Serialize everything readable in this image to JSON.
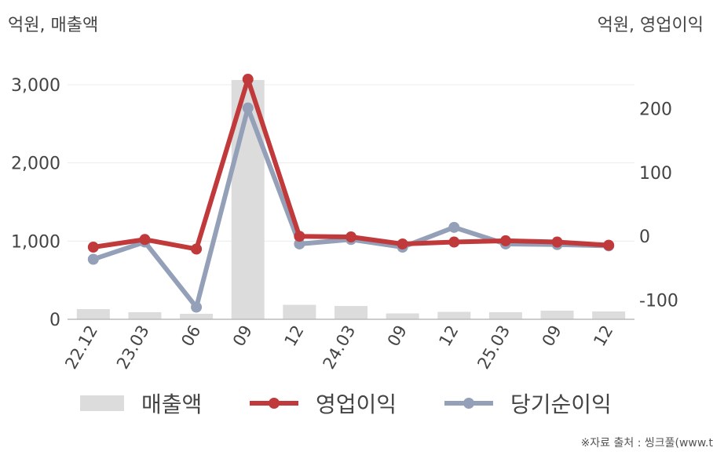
{
  "units": {
    "left": "억원, 매출액",
    "right": "억원, 영업이익"
  },
  "source": "※자료 출처 : 씽크풀(www.t",
  "colors": {
    "revenue": "#dcdcdc",
    "operating_profit": "#c0393b",
    "net_income": "#93a0b8",
    "axis": "#bbbbbb",
    "grid": "#ececec"
  },
  "legend": [
    {
      "label": "매출액",
      "kind": "bar",
      "color": "#dcdcdc"
    },
    {
      "label": "영업이익",
      "kind": "line",
      "color": "#c0393b"
    },
    {
      "label": "당기순이익",
      "kind": "line",
      "color": "#93a0b8"
    }
  ],
  "chart_data": {
    "type": "bar",
    "categories": [
      "22.12",
      "23.03",
      "06",
      "09",
      "12",
      "24.03",
      "09",
      "12",
      "25.03",
      "09",
      "12"
    ],
    "series": [
      {
        "name": "매출액",
        "type": "bar",
        "axis": "left",
        "values": [
          130,
          90,
          70,
          3060,
          185,
          170,
          75,
          95,
          90,
          110,
          100
        ]
      },
      {
        "name": "영업이익",
        "type": "line",
        "axis": "right",
        "values": [
          -17,
          -5,
          -20,
          246,
          0,
          -1,
          -12,
          -9,
          -7,
          -9,
          -14
        ]
      },
      {
        "name": "당기순이익",
        "type": "line",
        "axis": "right",
        "values": [
          -36,
          -9,
          -111,
          201,
          -12,
          -5,
          -17,
          14,
          -12,
          -13,
          -15
        ]
      }
    ],
    "left_axis": {
      "ylim": [
        0,
        3200
      ],
      "ticks": [
        0,
        1000,
        2000,
        3000
      ],
      "tick_labels": [
        "0",
        "1,000",
        "2,000",
        "3,000"
      ]
    },
    "right_axis": {
      "ylim": [
        -130,
        262
      ],
      "ticks": [
        -100,
        0,
        100,
        200
      ],
      "tick_labels": [
        "-100",
        "0",
        "100",
        "200"
      ]
    },
    "grid": true,
    "legend_position": "bottom"
  }
}
